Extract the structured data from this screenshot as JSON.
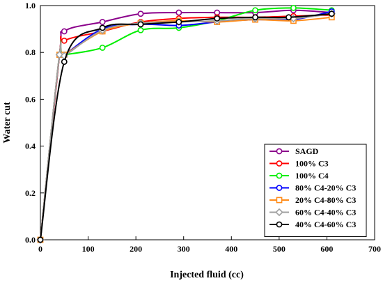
{
  "chart_data": {
    "type": "line",
    "xlabel": "Injected fluid (cc)",
    "ylabel": "Water cut",
    "xlim": [
      0,
      700
    ],
    "ylim": [
      0,
      1.0
    ],
    "x_ticks": [
      0,
      100,
      200,
      300,
      400,
      500,
      600,
      700
    ],
    "y_ticks": [
      0.0,
      0.2,
      0.4,
      0.6,
      0.8,
      1.0
    ],
    "x_tick_labels": [
      "0",
      "100",
      "200",
      "300",
      "400",
      "500",
      "600",
      "700"
    ],
    "y_tick_labels": [
      "0.0",
      "0.2",
      "0.4",
      "0.6",
      "0.8",
      "1.0"
    ],
    "grid": false,
    "legend_position": "bottom-right",
    "series": [
      {
        "name": "SAGD",
        "color": "#8B008B",
        "marker": "circle",
        "points": [
          [
            0,
            0.0
          ],
          [
            40,
            0.79
          ],
          [
            50,
            0.89
          ],
          [
            130,
            0.93
          ],
          [
            210,
            0.965
          ],
          [
            290,
            0.97
          ],
          [
            370,
            0.97
          ],
          [
            450,
            0.97
          ],
          [
            530,
            0.98
          ],
          [
            610,
            0.97
          ]
        ]
      },
      {
        "name": "100% C3",
        "color": "#FF0000",
        "marker": "circle",
        "points": [
          [
            0,
            0.0
          ],
          [
            40,
            0.79
          ],
          [
            50,
            0.85
          ],
          [
            130,
            0.89
          ],
          [
            210,
            0.93
          ],
          [
            290,
            0.945
          ],
          [
            370,
            0.95
          ],
          [
            450,
            0.95
          ],
          [
            530,
            0.955
          ],
          [
            610,
            0.96
          ]
        ]
      },
      {
        "name": "100% C4",
        "color": "#00EE00",
        "marker": "circle",
        "points": [
          [
            0,
            0.0
          ],
          [
            40,
            0.79
          ],
          [
            50,
            0.79
          ],
          [
            130,
            0.82
          ],
          [
            210,
            0.895
          ],
          [
            290,
            0.905
          ],
          [
            370,
            0.935
          ],
          [
            450,
            0.98
          ],
          [
            530,
            0.99
          ],
          [
            610,
            0.98
          ]
        ]
      },
      {
        "name": "80% C4-20% C3",
        "color": "#0000FF",
        "marker": "circle",
        "points": [
          [
            0,
            0.0
          ],
          [
            40,
            0.79
          ],
          [
            50,
            0.79
          ],
          [
            130,
            0.9
          ],
          [
            210,
            0.92
          ],
          [
            290,
            0.915
          ],
          [
            370,
            0.93
          ],
          [
            450,
            0.94
          ],
          [
            530,
            0.94
          ],
          [
            610,
            0.975
          ]
        ]
      },
      {
        "name": "20% C4-80% C3",
        "color": "#FF8C1A",
        "marker": "square",
        "points": [
          [
            0,
            0.0
          ],
          [
            40,
            0.79
          ],
          [
            50,
            0.79
          ],
          [
            130,
            0.89
          ],
          [
            210,
            0.925
          ],
          [
            290,
            0.935
          ],
          [
            370,
            0.93
          ],
          [
            450,
            0.94
          ],
          [
            530,
            0.935
          ],
          [
            610,
            0.95
          ]
        ]
      },
      {
        "name": "60% C4-40% C3",
        "color": "#A0A0A0",
        "marker": "diamond",
        "points": [
          [
            0,
            0.0
          ],
          [
            40,
            0.79
          ],
          [
            50,
            0.785
          ],
          [
            130,
            0.895
          ],
          [
            210,
            0.925
          ],
          [
            290,
            0.93
          ],
          [
            370,
            0.935
          ],
          [
            450,
            0.945
          ],
          [
            530,
            0.945
          ],
          [
            610,
            0.965
          ]
        ]
      },
      {
        "name": "40% C4-60% C3",
        "color": "#000000",
        "marker": "circle",
        "points": [
          [
            0,
            0.0
          ],
          [
            50,
            0.76
          ],
          [
            130,
            0.905
          ],
          [
            210,
            0.92
          ],
          [
            290,
            0.93
          ],
          [
            370,
            0.945
          ],
          [
            450,
            0.95
          ],
          [
            520,
            0.95
          ],
          [
            610,
            0.965
          ]
        ]
      }
    ]
  }
}
